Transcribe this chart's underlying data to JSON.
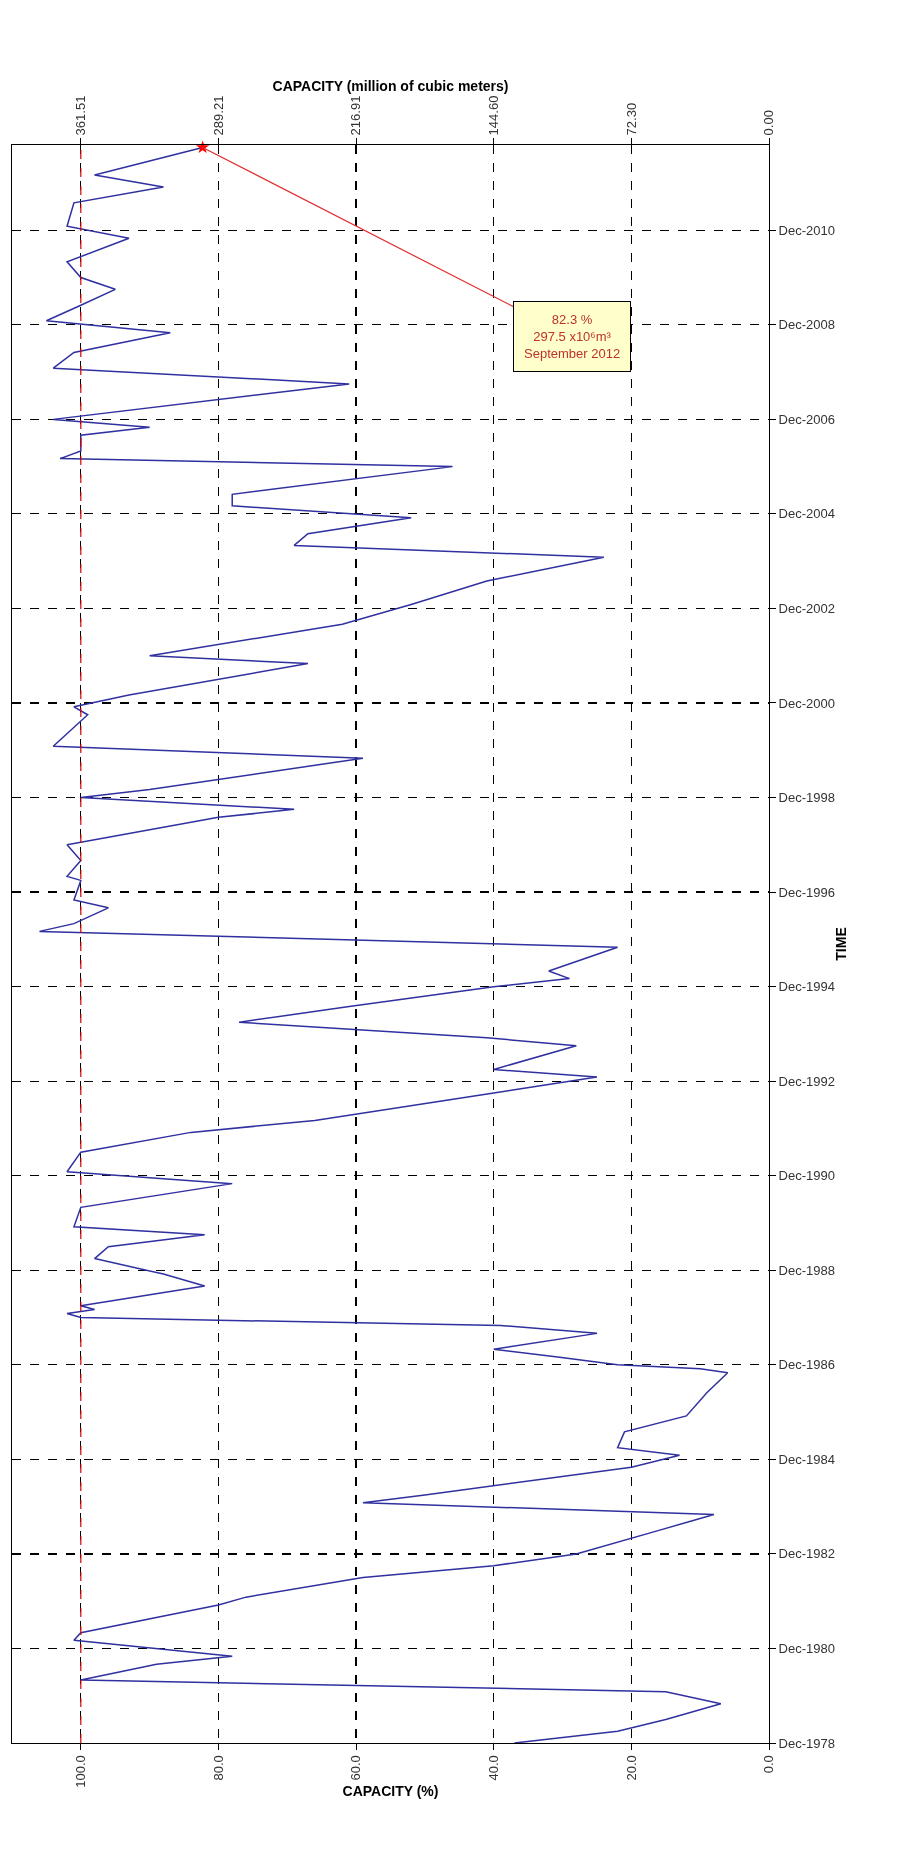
{
  "chart_data": {
    "type": "line",
    "orientation": "horizontal",
    "xlabel": "CAPACITY (%)",
    "ylabel": "TIME",
    "x2label": "CAPACITY (million of cubic meters)",
    "x": [
      "1978-12",
      "1979-03",
      "1979-06",
      "1979-10",
      "1980-01",
      "1980-04",
      "1980-08",
      "1980-10",
      "1981-02",
      "1981-04",
      "1981-11",
      "1982-01",
      "1982-06",
      "1982-09",
      "1982-12",
      "1983-06",
      "1983-10",
      "1984-01",
      "1984-03",
      "1984-10",
      "1985-01",
      "1985-03",
      "1985-07",
      "1985-11",
      "1986-05",
      "1986-10",
      "1986-11",
      "1986-12",
      "1987-02",
      "1987-04",
      "1987-08",
      "1987-10",
      "1987-12",
      "1988-01",
      "1988-02",
      "1988-03",
      "1988-08",
      "1988-11",
      "1989-03",
      "1989-06",
      "1989-09",
      "1989-11",
      "1990-04",
      "1990-10",
      "1991-01",
      "1991-06",
      "1991-11",
      "1992-02",
      "1992-09",
      "1993-01",
      "1993-03",
      "1993-09",
      "1993-11",
      "1994-03",
      "1994-07",
      "1994-12",
      "1995-02",
      "1995-04",
      "1995-10",
      "1996-02",
      "1996-04",
      "1996-08",
      "1996-10",
      "1997-03",
      "1997-04",
      "1997-08",
      "1997-12",
      "1998-07",
      "1998-09",
      "1998-12",
      "1999-02",
      "1999-10",
      "2000-01",
      "2000-09",
      "2000-11",
      "2001-02",
      "2001-10",
      "2001-12",
      "2002-08",
      "2003-01",
      "2003-07",
      "2004-01",
      "2004-04",
      "2004-07",
      "2004-11",
      "2005-02",
      "2005-05",
      "2005-12",
      "2006-02",
      "2006-04",
      "2006-08",
      "2006-10",
      "2006-12",
      "2007-09",
      "2008-01",
      "2008-05",
      "2008-10",
      "2009-01",
      "2009-05",
      "2009-09",
      "2009-12",
      "2010-04",
      "2010-10",
      "2011-01",
      "2011-07",
      "2011-11",
      "2012-02",
      "2012-09"
    ],
    "series": [
      {
        "color": "#3030a0",
        "values": [
          37,
          22,
          15,
          7,
          15,
          100,
          89,
          78,
          101,
          100,
          80,
          76,
          59,
          40,
          28,
          16,
          8,
          59,
          50,
          20,
          13,
          22,
          21,
          12,
          9,
          6,
          10,
          22,
          31,
          40,
          25,
          39,
          100,
          102,
          98,
          100,
          82,
          88,
          98,
          96,
          82,
          101,
          100,
          78,
          102,
          100,
          84,
          66,
          40,
          25,
          40,
          28,
          41,
          77,
          61,
          40,
          29,
          32,
          22,
          106,
          101,
          96,
          101,
          100,
          102,
          100,
          102,
          80,
          69,
          100,
          90,
          59,
          104,
          99,
          101,
          93,
          67,
          90,
          62,
          52,
          41,
          24,
          69,
          67,
          52,
          78,
          78,
          46,
          103,
          100,
          100,
          90,
          104,
          61,
          104,
          101,
          87,
          105,
          100,
          95,
          100,
          102,
          93,
          102,
          101,
          88,
          98,
          82.3
        ]
      },
      {
        "type": "scatter",
        "color": "#ff0000",
        "marker": "star",
        "x": [
          "2012-09"
        ],
        "values": [
          82.3
        ]
      }
    ],
    "ylim": [
      "1978-12-01",
      "2012-09-20"
    ],
    "yticks": [
      {
        "value": "1978-12-01",
        "label": "Dec-1978"
      },
      {
        "value": "1980-12-01",
        "label": "Dec-1980"
      },
      {
        "value": "1982-12-01",
        "label": "Dec-1982"
      },
      {
        "value": "1984-12-01",
        "label": "Dec-1984"
      },
      {
        "value": "1986-12-01",
        "label": "Dec-1986"
      },
      {
        "value": "1988-12-01",
        "label": "Dec-1988"
      },
      {
        "value": "1990-12-01",
        "label": "Dec-1990"
      },
      {
        "value": "1992-12-01",
        "label": "Dec-1992"
      },
      {
        "value": "1994-12-01",
        "label": "Dec-1994"
      },
      {
        "value": "1996-12-01",
        "label": "Dec-1996"
      },
      {
        "value": "1998-12-01",
        "label": "Dec-1998"
      },
      {
        "value": "2000-12-01",
        "label": "Dec-2000"
      },
      {
        "value": "2002-12-01",
        "label": "Dec-2002"
      },
      {
        "value": "2004-12-01",
        "label": "Dec-2004"
      },
      {
        "value": "2006-12-01",
        "label": "Dec-2006"
      },
      {
        "value": "2008-12-01",
        "label": "Dec-2008"
      },
      {
        "value": "2010-12-01",
        "label": "Dec-2010"
      }
    ],
    "xlim": [
      110,
      0
    ],
    "xticks": [
      {
        "value": 100,
        "label": "100.0"
      },
      {
        "value": 80,
        "label": "80.0"
      },
      {
        "value": 60,
        "label": "60.0"
      },
      {
        "value": 40,
        "label": "40.0"
      },
      {
        "value": 20,
        "label": "20.0"
      },
      {
        "value": 0,
        "label": "0.0"
      }
    ],
    "x2lim": [
      397.66,
      0
    ],
    "x2ticks": [
      {
        "value": 361.51,
        "label": "361.51"
      },
      {
        "value": 289.208,
        "label": "289.21"
      },
      {
        "value": 216.906,
        "label": "216.91"
      },
      {
        "value": 144.604,
        "label": "144.60"
      },
      {
        "value": 72.302,
        "label": "72.30"
      },
      {
        "value": 0,
        "label": "0.00"
      }
    ],
    "grid": true,
    "ref_lines": [
      {
        "axis": "x",
        "value": 100,
        "color": "#cc0000",
        "line_style": "dashed"
      }
    ],
    "annotations": [
      {
        "text": "82.3 %\n297.5 x10⁶m³\nSeptember 2012",
        "x": 82.3,
        "y": "2012-09"
      }
    ]
  }
}
